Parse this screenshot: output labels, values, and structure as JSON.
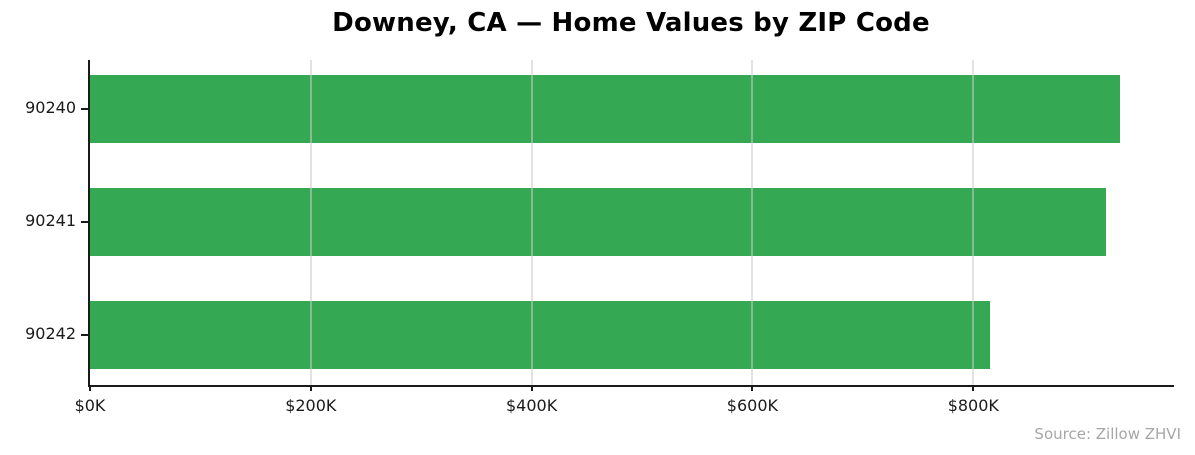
{
  "chart_data": {
    "type": "bar",
    "orientation": "horizontal",
    "title": "Downey, CA — Home Values by ZIP Code",
    "categories": [
      "90240",
      "90241",
      "90242"
    ],
    "values": [
      933000,
      920000,
      815000
    ],
    "xlabel": "",
    "ylabel": "",
    "xlim": [
      0,
      980000
    ],
    "xticks": [
      0,
      200000,
      400000,
      600000,
      800000
    ],
    "xtick_labels": [
      "$0K",
      "$200K",
      "$400K",
      "$600K",
      "$800K"
    ],
    "grid": true,
    "legend": "none",
    "bar_color": "#34a853",
    "source": "Source: Zillow ZHVI"
  },
  "colors": {
    "bar": "#34a853",
    "axis": "#1a1a1a",
    "gridline": "#e3e3e3",
    "tick_text": "#1a1a1a",
    "title_text": "#000000",
    "source_text": "#a6a6a6",
    "background": "#ffffff"
  }
}
